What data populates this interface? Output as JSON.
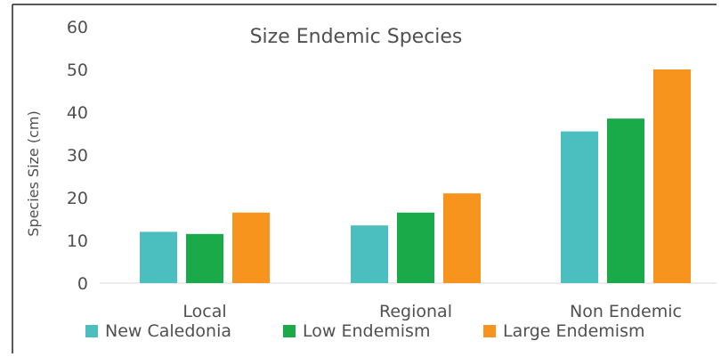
{
  "chart_data": {
    "type": "bar",
    "title": "Size Endemic Species",
    "xlabel": "",
    "ylabel": "Species Size (cm)",
    "ylim": [
      0,
      60
    ],
    "yticks": [
      0,
      10,
      20,
      30,
      40,
      50,
      60
    ],
    "grid": false,
    "legend_position": "bottom",
    "categories": [
      "Local",
      "Regional",
      "Non Endemic"
    ],
    "series": [
      {
        "name": "New Caledonia",
        "color": "#4bbfbf",
        "values": [
          12,
          13.5,
          35.5
        ]
      },
      {
        "name": "Low Endemism",
        "color": "#1aaa4a",
        "values": [
          11.5,
          16.5,
          38.5
        ]
      },
      {
        "name": "Large Endemism",
        "color": "#f7941d",
        "values": [
          16.5,
          21,
          50
        ]
      }
    ]
  }
}
